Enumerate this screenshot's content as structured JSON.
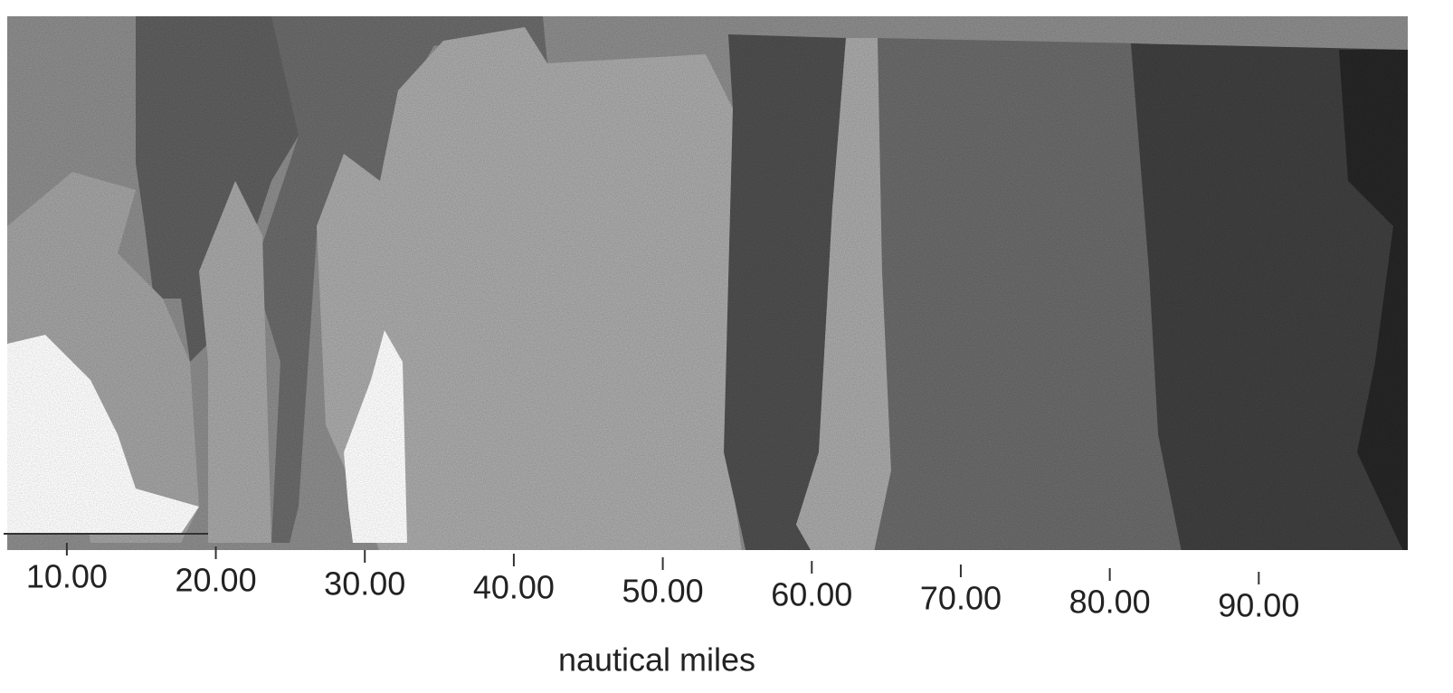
{
  "chart_data": {
    "type": "contour",
    "xlabel": "nautical miles",
    "xlim": [
      6,
      100
    ],
    "xticks": [
      {
        "value": 10,
        "label": "10.00"
      },
      {
        "value": 20,
        "label": "20.00"
      },
      {
        "value": 30,
        "label": "30.00"
      },
      {
        "value": 40,
        "label": "40.00"
      },
      {
        "value": 50,
        "label": "50.00"
      },
      {
        "value": 60,
        "label": "60.00"
      },
      {
        "value": 70,
        "label": "70.00"
      },
      {
        "value": 80,
        "label": "80.00"
      },
      {
        "value": 90,
        "label": "90.00"
      }
    ]
  }
}
